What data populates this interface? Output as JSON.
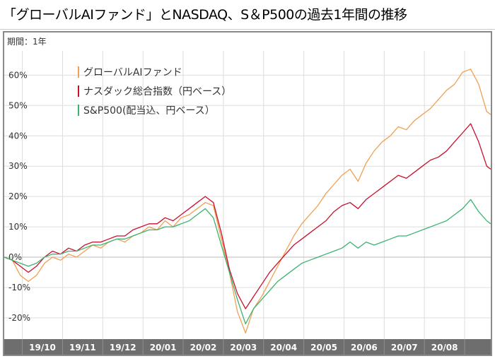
{
  "title": "「グローバルAIファンド」とNASDAQ、S＆P500の過去1年間の推移",
  "period_label": "期間：1年",
  "chart_data": {
    "type": "line",
    "ylabel": "",
    "xlabel": "",
    "ylim": [
      -27,
      68
    ],
    "y_ticks": [
      -20,
      -10,
      0,
      10,
      20,
      30,
      40,
      50,
      60
    ],
    "y_tick_labels": [
      "-20%",
      "-10%",
      "0%",
      "10%",
      "20%",
      "30%",
      "40%",
      "50%",
      "60%"
    ],
    "x_range": [
      0,
      12.1
    ],
    "x_ticks": [
      {
        "label": "19/10",
        "pos": 0.95
      },
      {
        "label": "19/11",
        "pos": 1.95
      },
      {
        "label": "19/12",
        "pos": 2.95
      },
      {
        "label": "20/01",
        "pos": 3.95
      },
      {
        "label": "20/02",
        "pos": 4.95
      },
      {
        "label": "20/03",
        "pos": 5.95
      },
      {
        "label": "20/04",
        "pos": 6.95
      },
      {
        "label": "20/05",
        "pos": 7.95
      },
      {
        "label": "20/06",
        "pos": 8.95
      },
      {
        "label": "20/07",
        "pos": 9.95
      },
      {
        "label": "20/08",
        "pos": 10.95
      }
    ],
    "grid": true,
    "legend_position": "top-left",
    "series": [
      {
        "name": "グローバルAIファンド",
        "color": "#f0a050",
        "points": [
          [
            0.0,
            0
          ],
          [
            0.2,
            -1
          ],
          [
            0.4,
            -6
          ],
          [
            0.6,
            -8
          ],
          [
            0.8,
            -6
          ],
          [
            1.0,
            -2
          ],
          [
            1.2,
            0
          ],
          [
            1.4,
            -1
          ],
          [
            1.6,
            1
          ],
          [
            1.8,
            0
          ],
          [
            2.0,
            2
          ],
          [
            2.2,
            4
          ],
          [
            2.4,
            3
          ],
          [
            2.6,
            5
          ],
          [
            2.8,
            6
          ],
          [
            3.0,
            5
          ],
          [
            3.2,
            7
          ],
          [
            3.4,
            8
          ],
          [
            3.6,
            10
          ],
          [
            3.8,
            9
          ],
          [
            4.0,
            12
          ],
          [
            4.2,
            10
          ],
          [
            4.4,
            13
          ],
          [
            4.6,
            14
          ],
          [
            4.8,
            16
          ],
          [
            5.0,
            18
          ],
          [
            5.2,
            17
          ],
          [
            5.4,
            6
          ],
          [
            5.6,
            -5
          ],
          [
            5.8,
            -18
          ],
          [
            6.0,
            -25
          ],
          [
            6.2,
            -17
          ],
          [
            6.4,
            -13
          ],
          [
            6.6,
            -8
          ],
          [
            6.8,
            -3
          ],
          [
            7.0,
            2
          ],
          [
            7.2,
            7
          ],
          [
            7.4,
            11
          ],
          [
            7.6,
            14
          ],
          [
            7.8,
            17
          ],
          [
            8.0,
            21
          ],
          [
            8.2,
            24
          ],
          [
            8.4,
            27
          ],
          [
            8.6,
            29
          ],
          [
            8.8,
            25
          ],
          [
            9.0,
            31
          ],
          [
            9.2,
            35
          ],
          [
            9.4,
            38
          ],
          [
            9.6,
            40
          ],
          [
            9.8,
            43
          ],
          [
            10.0,
            42
          ],
          [
            10.2,
            45
          ],
          [
            10.4,
            47
          ],
          [
            10.6,
            49
          ],
          [
            10.8,
            52
          ],
          [
            11.0,
            55
          ],
          [
            11.2,
            57
          ],
          [
            11.4,
            61
          ],
          [
            11.6,
            62
          ],
          [
            11.8,
            57
          ],
          [
            12.0,
            48
          ],
          [
            12.1,
            47
          ]
        ]
      },
      {
        "name": "ナスダック総合指数（円ベース）",
        "color": "#c8102e",
        "points": [
          [
            0.0,
            0
          ],
          [
            0.2,
            -1
          ],
          [
            0.4,
            -3
          ],
          [
            0.6,
            -5
          ],
          [
            0.8,
            -3
          ],
          [
            1.0,
            0
          ],
          [
            1.2,
            2
          ],
          [
            1.4,
            1
          ],
          [
            1.6,
            3
          ],
          [
            1.8,
            2
          ],
          [
            2.0,
            4
          ],
          [
            2.2,
            5
          ],
          [
            2.4,
            5
          ],
          [
            2.6,
            6
          ],
          [
            2.8,
            7
          ],
          [
            3.0,
            7
          ],
          [
            3.2,
            9
          ],
          [
            3.4,
            10
          ],
          [
            3.6,
            11
          ],
          [
            3.8,
            11
          ],
          [
            4.0,
            13
          ],
          [
            4.2,
            12
          ],
          [
            4.4,
            14
          ],
          [
            4.6,
            16
          ],
          [
            4.8,
            18
          ],
          [
            5.0,
            20
          ],
          [
            5.2,
            18
          ],
          [
            5.4,
            8
          ],
          [
            5.6,
            -4
          ],
          [
            5.8,
            -12
          ],
          [
            6.0,
            -17
          ],
          [
            6.2,
            -13
          ],
          [
            6.4,
            -9
          ],
          [
            6.6,
            -5
          ],
          [
            6.8,
            -2
          ],
          [
            7.0,
            1
          ],
          [
            7.2,
            4
          ],
          [
            7.4,
            6
          ],
          [
            7.6,
            8
          ],
          [
            7.8,
            10
          ],
          [
            8.0,
            12
          ],
          [
            8.2,
            15
          ],
          [
            8.4,
            17
          ],
          [
            8.6,
            18
          ],
          [
            8.8,
            16
          ],
          [
            9.0,
            19
          ],
          [
            9.2,
            21
          ],
          [
            9.4,
            23
          ],
          [
            9.6,
            25
          ],
          [
            9.8,
            27
          ],
          [
            10.0,
            26
          ],
          [
            10.2,
            28
          ],
          [
            10.4,
            30
          ],
          [
            10.6,
            32
          ],
          [
            10.8,
            33
          ],
          [
            11.0,
            35
          ],
          [
            11.2,
            38
          ],
          [
            11.4,
            41
          ],
          [
            11.6,
            44
          ],
          [
            11.8,
            38
          ],
          [
            12.0,
            30
          ],
          [
            12.1,
            29
          ]
        ]
      },
      {
        "name": "S&P500(配当込、円ベース）",
        "color": "#3cb371",
        "points": [
          [
            0.0,
            0
          ],
          [
            0.2,
            -1
          ],
          [
            0.4,
            -2
          ],
          [
            0.6,
            -3
          ],
          [
            0.8,
            -2
          ],
          [
            1.0,
            0
          ],
          [
            1.2,
            1
          ],
          [
            1.4,
            1
          ],
          [
            1.6,
            2
          ],
          [
            1.8,
            2
          ],
          [
            2.0,
            3
          ],
          [
            2.2,
            4
          ],
          [
            2.4,
            4
          ],
          [
            2.6,
            5
          ],
          [
            2.8,
            6
          ],
          [
            3.0,
            6
          ],
          [
            3.2,
            7
          ],
          [
            3.4,
            8
          ],
          [
            3.6,
            9
          ],
          [
            3.8,
            9
          ],
          [
            4.0,
            10
          ],
          [
            4.2,
            10
          ],
          [
            4.4,
            11
          ],
          [
            4.6,
            12
          ],
          [
            4.8,
            14
          ],
          [
            5.0,
            16
          ],
          [
            5.2,
            13
          ],
          [
            5.4,
            4
          ],
          [
            5.6,
            -5
          ],
          [
            5.8,
            -14
          ],
          [
            6.0,
            -22
          ],
          [
            6.2,
            -17
          ],
          [
            6.4,
            -14
          ],
          [
            6.6,
            -11
          ],
          [
            6.8,
            -8
          ],
          [
            7.0,
            -6
          ],
          [
            7.2,
            -4
          ],
          [
            7.4,
            -2
          ],
          [
            7.6,
            -1
          ],
          [
            7.8,
            0
          ],
          [
            8.0,
            1
          ],
          [
            8.2,
            2
          ],
          [
            8.4,
            3
          ],
          [
            8.6,
            5
          ],
          [
            8.8,
            3
          ],
          [
            9.0,
            5
          ],
          [
            9.2,
            4
          ],
          [
            9.4,
            5
          ],
          [
            9.6,
            6
          ],
          [
            9.8,
            7
          ],
          [
            10.0,
            7
          ],
          [
            10.2,
            8
          ],
          [
            10.4,
            9
          ],
          [
            10.6,
            10
          ],
          [
            10.8,
            11
          ],
          [
            11.0,
            12
          ],
          [
            11.2,
            14
          ],
          [
            11.4,
            16
          ],
          [
            11.6,
            19
          ],
          [
            11.8,
            15
          ],
          [
            12.0,
            12
          ],
          [
            12.1,
            11
          ]
        ]
      }
    ]
  }
}
